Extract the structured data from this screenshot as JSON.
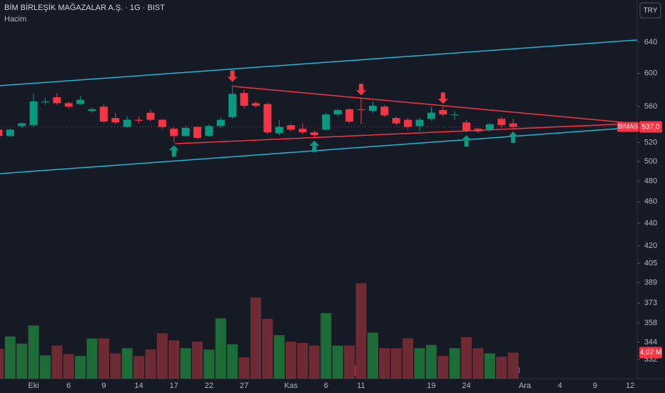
{
  "chart_data": {
    "type": "candlestick",
    "title": "BİM BİRLEŞİK MAĞAZALAR A.Ş. · 1G · BIST",
    "subtitle": "Hacim",
    "currency": "TRY",
    "symbol": "BIMAS",
    "categories": [
      null,
      null,
      null,
      "Eki",
      null,
      null,
      "6",
      null,
      null,
      "9",
      null,
      null,
      "14",
      null,
      null,
      "17",
      null,
      null,
      "22",
      null,
      null,
      "27",
      null,
      null,
      null,
      "Kas",
      null,
      null,
      "6",
      null,
      null,
      "11",
      null,
      null,
      null,
      null,
      null,
      "19",
      null,
      null,
      "24",
      null,
      null,
      null,
      null,
      "Ara",
      null,
      null,
      "4",
      null,
      null,
      "9",
      null,
      null,
      "12"
    ],
    "open": [
      534,
      527,
      538,
      539,
      566,
      571,
      564,
      563,
      555,
      560,
      547,
      537,
      545,
      553,
      545,
      535,
      527,
      537,
      527,
      538,
      548,
      576,
      564,
      563,
      530,
      539,
      535,
      531,
      534,
      551,
      557,
      557,
      555,
      560,
      547,
      545,
      538,
      546,
      556,
      551,
      542,
      535,
      534,
      546,
      541,
      null,
      null,
      null,
      null,
      null,
      null,
      null,
      null,
      null,
      null
    ],
    "high": [
      537,
      535,
      542,
      575,
      570,
      576,
      566,
      573,
      559,
      563,
      553,
      549,
      549,
      557,
      546,
      537,
      538,
      538,
      540,
      548,
      586,
      580,
      566,
      565,
      545,
      540,
      541,
      533,
      553,
      558,
      558,
      570,
      566,
      562,
      549,
      547,
      547,
      560,
      560,
      555,
      545,
      536,
      541,
      548,
      546,
      null,
      null,
      null,
      null,
      null,
      null,
      null,
      null,
      null,
      null
    ],
    "low": [
      525,
      526,
      536,
      537,
      562,
      562,
      558,
      562,
      553,
      542,
      540,
      536,
      541,
      543,
      535,
      520,
      526,
      524,
      526,
      536,
      546,
      558,
      559,
      529,
      528,
      532,
      529,
      525,
      533,
      549,
      541,
      540,
      553,
      548,
      539,
      534,
      533,
      544,
      549,
      545,
      531,
      530,
      532,
      536,
      535,
      null,
      null,
      null,
      null,
      null,
      null,
      null,
      null,
      null,
      null
    ],
    "close": [
      527,
      534,
      541,
      566,
      566,
      564,
      560,
      568,
      557,
      543,
      542,
      545,
      544,
      545,
      537,
      527,
      536,
      525,
      538,
      545,
      575,
      561,
      561,
      531,
      537,
      534,
      531,
      528,
      551,
      556,
      543,
      556,
      561,
      550,
      541,
      537,
      545,
      553,
      551,
      551,
      533,
      532,
      540,
      539,
      537,
      null,
      null,
      null,
      null,
      null,
      null,
      null,
      null,
      null,
      null
    ],
    "volume": [
      4.6,
      6.5,
      5.4,
      8.2,
      3.6,
      5.1,
      3.8,
      3.5,
      6.2,
      6.2,
      3.9,
      4.7,
      3.5,
      4.5,
      7.0,
      5.9,
      4.7,
      5.7,
      4.5,
      9.3,
      5.3,
      3.3,
      12.5,
      9.2,
      6.7,
      5.7,
      5.5,
      5.1,
      10.1,
      5.1,
      5.1,
      14.7,
      7.1,
      4.7,
      4.7,
      6.2,
      4.7,
      5.2,
      3.5,
      4.7,
      6.4,
      4.7,
      3.9,
      3.4,
      4.02,
      null,
      null,
      null,
      null,
      null,
      null,
      null,
      null,
      null,
      null
    ],
    "volume_label": {
      "value": 4.02,
      "label": "4,02 M"
    },
    "last_price": {
      "value": 537,
      "label": "537,0"
    },
    "xlim": [
      0.13,
      54.6
    ],
    "ylim": [
      319,
      690
    ],
    "vlim": [
      0,
      16.5
    ],
    "log_scale": true,
    "yticks": [
      640,
      600,
      560,
      520,
      500,
      480,
      460,
      440,
      420,
      405,
      389,
      373,
      358,
      344,
      332
    ],
    "up_color": "#089981",
    "down_color": "#f23645",
    "volume_up_color": "#1d6b36",
    "volume_down_color": "#6e2b33",
    "trendlines": [
      {
        "color": "#22b6d2",
        "points": [
          [
            0.13,
            584.8
          ],
          [
            54.6,
            642.8
          ]
        ]
      },
      {
        "color": "#22b6d2",
        "points": [
          [
            0.13,
            487.5
          ],
          [
            52.9,
            535
          ]
        ]
      },
      {
        "color": "#f23645",
        "points": [
          [
            20.1,
            584
          ],
          [
            54.6,
            540.7
          ]
        ]
      },
      {
        "color": "#f23645",
        "points": [
          [
            15.1,
            518.7
          ],
          [
            54.6,
            541
          ]
        ]
      }
    ],
    "sell_signals": [
      20,
      31,
      38
    ],
    "buy_signals": [
      15,
      27,
      40,
      44
    ]
  }
}
